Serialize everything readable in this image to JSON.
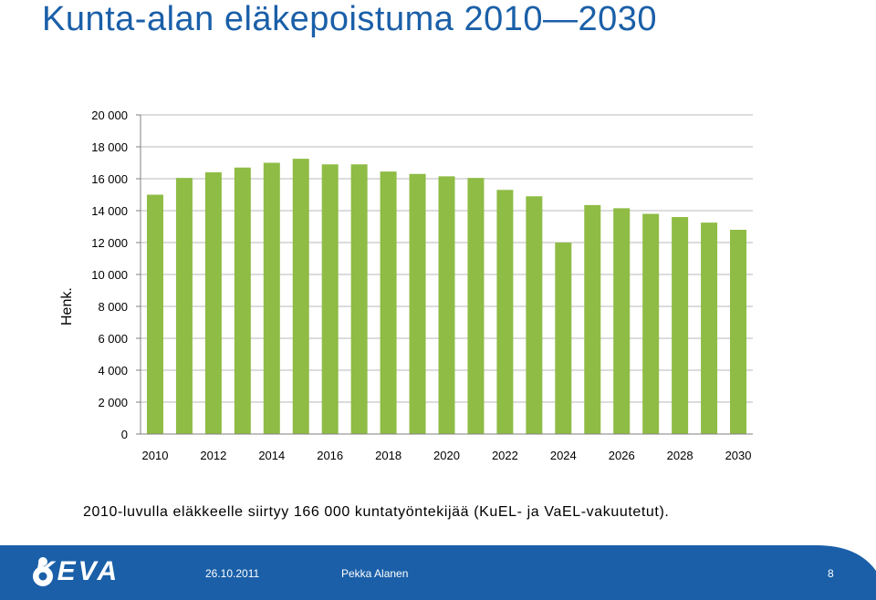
{
  "slide": {
    "title": "Kunta-alan eläkepoistuma 2010—2030",
    "caption": "2010-luvulla eläkkeelle siirtyy 166 000 kuntatyöntekijää (KuEL- ja VaEL-vakuutetut)."
  },
  "footer": {
    "logo_text": "KEVA",
    "date": "26.10.2011",
    "presenter": "Pekka Alanen",
    "page_number": "8",
    "background_color": "#1a5fa8"
  },
  "chart_data": {
    "type": "bar",
    "ylabel": "Henk.",
    "xlabel": "",
    "ylim": [
      0,
      20000
    ],
    "y_ticks": [
      0,
      2000,
      4000,
      6000,
      8000,
      10000,
      12000,
      14000,
      16000,
      18000,
      20000
    ],
    "y_tick_labels": [
      "0",
      "2 000",
      "4 000",
      "6 000",
      "8 000",
      "10 000",
      "12 000",
      "14 000",
      "16 000",
      "18 000",
      "20 000"
    ],
    "x_tick_labels": [
      "2010",
      "2012",
      "2014",
      "2016",
      "2018",
      "2020",
      "2022",
      "2024",
      "2026",
      "2028",
      "2030"
    ],
    "categories": [
      "2010",
      "2011",
      "2012",
      "2013",
      "2014",
      "2015",
      "2016",
      "2017",
      "2018",
      "2019",
      "2020",
      "2021",
      "2022",
      "2023",
      "2024",
      "2025",
      "2026",
      "2027",
      "2028",
      "2029",
      "2030"
    ],
    "values": [
      15000,
      16050,
      16400,
      16700,
      17000,
      17250,
      16900,
      16900,
      16450,
      16300,
      16150,
      16050,
      15300,
      14900,
      12000,
      14350,
      14150,
      13800,
      13600,
      13250,
      12800
    ],
    "bar_color": "#8fbc45",
    "grid": true
  }
}
